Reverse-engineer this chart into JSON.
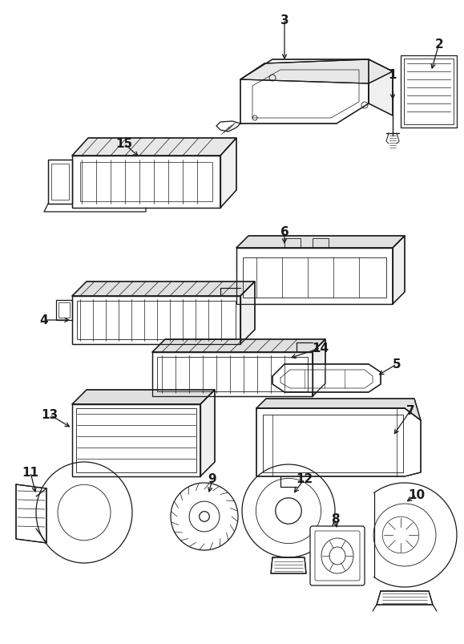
{
  "bg_color": "#ffffff",
  "line_color": "#1a1a1a",
  "fig_width": 5.79,
  "fig_height": 8.04,
  "dpi": 100,
  "parts": {
    "label_fontsize": 11,
    "arrow_lw": 0.9,
    "part_lw": 0.9
  }
}
